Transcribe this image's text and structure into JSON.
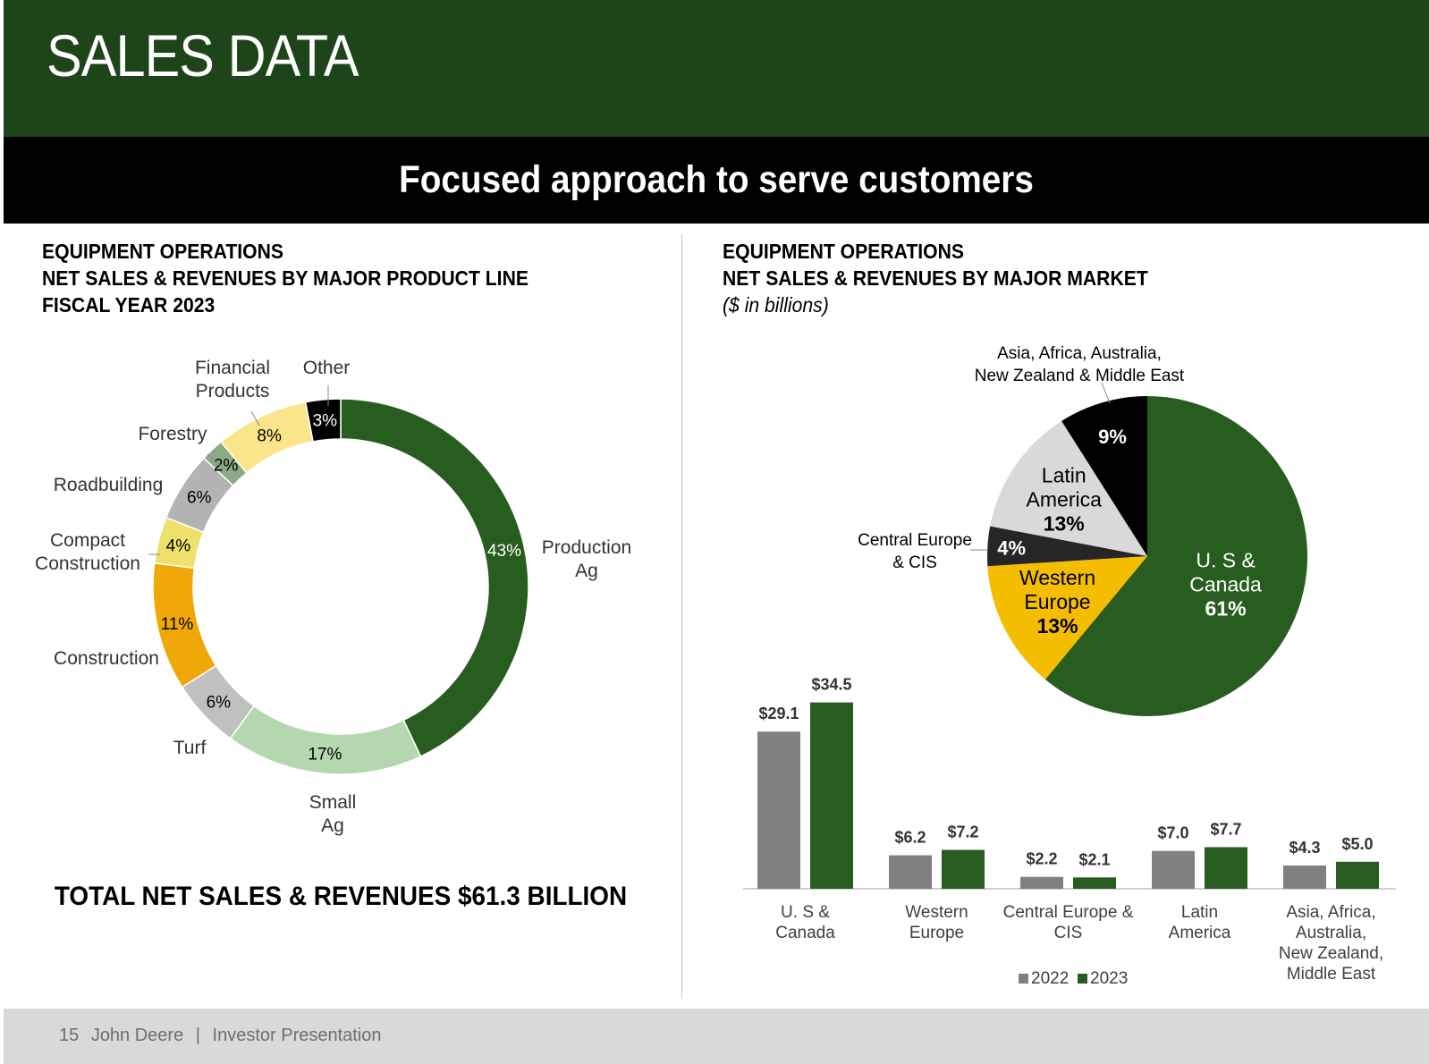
{
  "header": {
    "title": "SALES DATA",
    "color": "#1e4419"
  },
  "subheader": {
    "title": "Focused approach to serve customers"
  },
  "left_panel": {
    "title_lines": [
      "EQUIPMENT OPERATIONS",
      "NET SALES & REVENUES BY MAJOR PRODUCT LINE",
      "FISCAL YEAR 2023"
    ],
    "total_label": "TOTAL NET SALES & REVENUES $61.3 BILLION"
  },
  "right_panel": {
    "title_lines": [
      "EQUIPMENT OPERATIONS",
      "NET SALES & REVENUES BY MAJOR MARKET"
    ],
    "title_note": "($ in billions)"
  },
  "footer": {
    "page_number": "15",
    "company": "John Deere",
    "separator": "|",
    "doc": "Investor Presentation"
  },
  "chart_data": [
    {
      "type": "pie",
      "variant": "donut",
      "series": [
        {
          "slices": [
            {
              "label": "Production Ag",
              "value": 43,
              "value_label": "43%",
              "color": "#275d1e"
            },
            {
              "label": "Small Ag",
              "value": 17,
              "value_label": "17%",
              "color": "#b5d7b0"
            },
            {
              "label": "Turf",
              "value": 6,
              "value_label": "6%",
              "color": "#c0c0c0"
            },
            {
              "label": "Construction",
              "value": 11,
              "value_label": "11%",
              "color": "#f0a808"
            },
            {
              "label": "Compact Construction",
              "value": 4,
              "value_label": "4%",
              "color": "#ede16c"
            },
            {
              "label": "Roadbuilding",
              "value": 6,
              "value_label": "6%",
              "color": "#b3b3b3"
            },
            {
              "label": "Forestry",
              "value": 2,
              "value_label": "2%",
              "color": "#8aab84"
            },
            {
              "label": "Financial Products",
              "value": 8,
              "value_label": "8%",
              "color": "#fbe58a"
            },
            {
              "label": "Other",
              "value": 3,
              "value_label": "3%",
              "color": "#000000"
            }
          ]
        }
      ]
    },
    {
      "type": "pie",
      "series": [
        {
          "slices": [
            {
              "label": "U. S & Canada",
              "value": 61,
              "value_label": "61%",
              "color": "#275d1e"
            },
            {
              "label": "Western Europe",
              "value": 13,
              "value_label": "13%",
              "color": "#f5bd00"
            },
            {
              "label": "Central Europe & CIS",
              "value": 4,
              "value_label": "4%",
              "color": "#262626"
            },
            {
              "label": "Latin America",
              "value": 13,
              "value_label": "13%",
              "color": "#d9d9d9"
            },
            {
              "label": "Asia, Africa, Australia, New Zealand & Middle East",
              "value": 9,
              "value_label": "9%",
              "color": "#000000"
            }
          ]
        }
      ]
    },
    {
      "type": "bar",
      "categories": [
        "U. S & Canada",
        "Western Europe",
        "Central Europe & CIS",
        "Latin America",
        "Asia, Africa, Australia, New Zealand, Middle East"
      ],
      "series": [
        {
          "name": "2022",
          "values": [
            29.1,
            6.2,
            2.2,
            7.0,
            4.3
          ],
          "value_labels": [
            "$29.1",
            "$6.2",
            "$2.2",
            "$7.0",
            "$4.3"
          ],
          "color": "#808080"
        },
        {
          "name": "2023",
          "values": [
            34.5,
            7.2,
            2.1,
            7.7,
            5.0
          ],
          "value_labels": [
            "$34.5",
            "$7.2",
            "$2.1",
            "$7.7",
            "$5.0"
          ],
          "color": "#275d1e"
        }
      ],
      "legend": "bottom"
    }
  ]
}
